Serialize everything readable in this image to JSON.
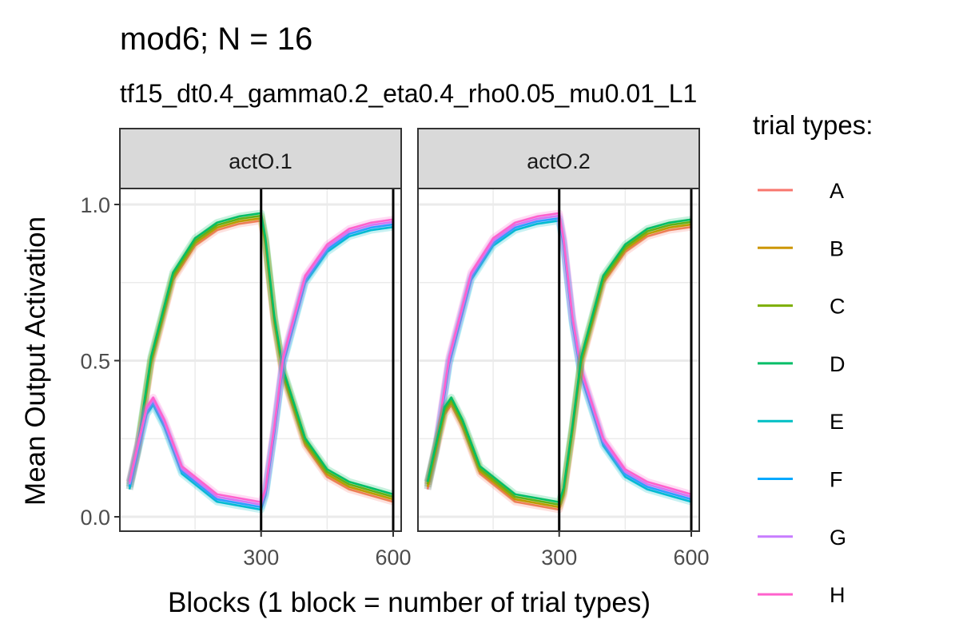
{
  "chart_data": {
    "type": "line",
    "title": "mod6; N = 16",
    "subtitle": "tf15_dt0.4_gamma0.2_eta0.4_rho0.05_mu0.01_L1",
    "xlabel": "Blocks (1 block = number of trial types)",
    "ylabel": "Mean Output Activation",
    "xlim": [
      1,
      600
    ],
    "ylim": [
      0.0,
      1.0
    ],
    "x_ticks": [
      "300",
      "600"
    ],
    "y_ticks": [
      "0.0",
      "0.5",
      "1.0"
    ],
    "vlines": [
      300,
      600
    ],
    "grid": true,
    "legend": {
      "title": "trial types:",
      "position": "right",
      "entries": [
        {
          "name": "A",
          "color": "#F8766D"
        },
        {
          "name": "B",
          "color": "#CD9600"
        },
        {
          "name": "C",
          "color": "#7CAE00"
        },
        {
          "name": "D",
          "color": "#00BE67"
        },
        {
          "name": "E",
          "color": "#00BFC4"
        },
        {
          "name": "F",
          "color": "#00A9FF"
        },
        {
          "name": "G",
          "color": "#C77CFF"
        },
        {
          "name": "H",
          "color": "#FF61CC"
        }
      ]
    },
    "panels": [
      {
        "label": "actO.1",
        "groups": [
          {
            "series": [
              "A",
              "B",
              "C",
              "D"
            ],
            "x": [
              1,
              20,
              50,
              100,
              150,
              200,
              250,
              300,
              310,
              330,
              350,
              400,
              450,
              500,
              550,
              600
            ],
            "y": [
              0.1,
              0.22,
              0.5,
              0.77,
              0.88,
              0.93,
              0.95,
              0.96,
              0.88,
              0.63,
              0.46,
              0.24,
              0.14,
              0.1,
              0.08,
              0.06
            ]
          },
          {
            "series": [
              "E",
              "F",
              "G",
              "H"
            ],
            "x": [
              1,
              20,
              40,
              55,
              80,
              120,
              200,
              300,
              310,
              330,
              350,
              400,
              450,
              500,
              550,
              600
            ],
            "y": [
              0.1,
              0.22,
              0.34,
              0.37,
              0.3,
              0.15,
              0.06,
              0.035,
              0.08,
              0.28,
              0.5,
              0.76,
              0.86,
              0.91,
              0.93,
              0.94
            ]
          }
        ]
      },
      {
        "label": "actO.2",
        "groups": [
          {
            "series": [
              "E",
              "F",
              "G",
              "H"
            ],
            "x": [
              1,
              20,
              50,
              100,
              150,
              200,
              250,
              300,
              310,
              330,
              350,
              400,
              450,
              500,
              550,
              600
            ],
            "y": [
              0.1,
              0.22,
              0.5,
              0.77,
              0.88,
              0.93,
              0.95,
              0.96,
              0.88,
              0.63,
              0.46,
              0.24,
              0.14,
              0.1,
              0.08,
              0.06
            ]
          },
          {
            "series": [
              "A",
              "B",
              "C",
              "D"
            ],
            "x": [
              1,
              20,
              40,
              55,
              80,
              120,
              200,
              300,
              310,
              330,
              350,
              400,
              450,
              500,
              550,
              600
            ],
            "y": [
              0.1,
              0.22,
              0.34,
              0.37,
              0.3,
              0.15,
              0.06,
              0.035,
              0.08,
              0.28,
              0.5,
              0.76,
              0.86,
              0.91,
              0.93,
              0.94
            ]
          }
        ]
      }
    ]
  }
}
